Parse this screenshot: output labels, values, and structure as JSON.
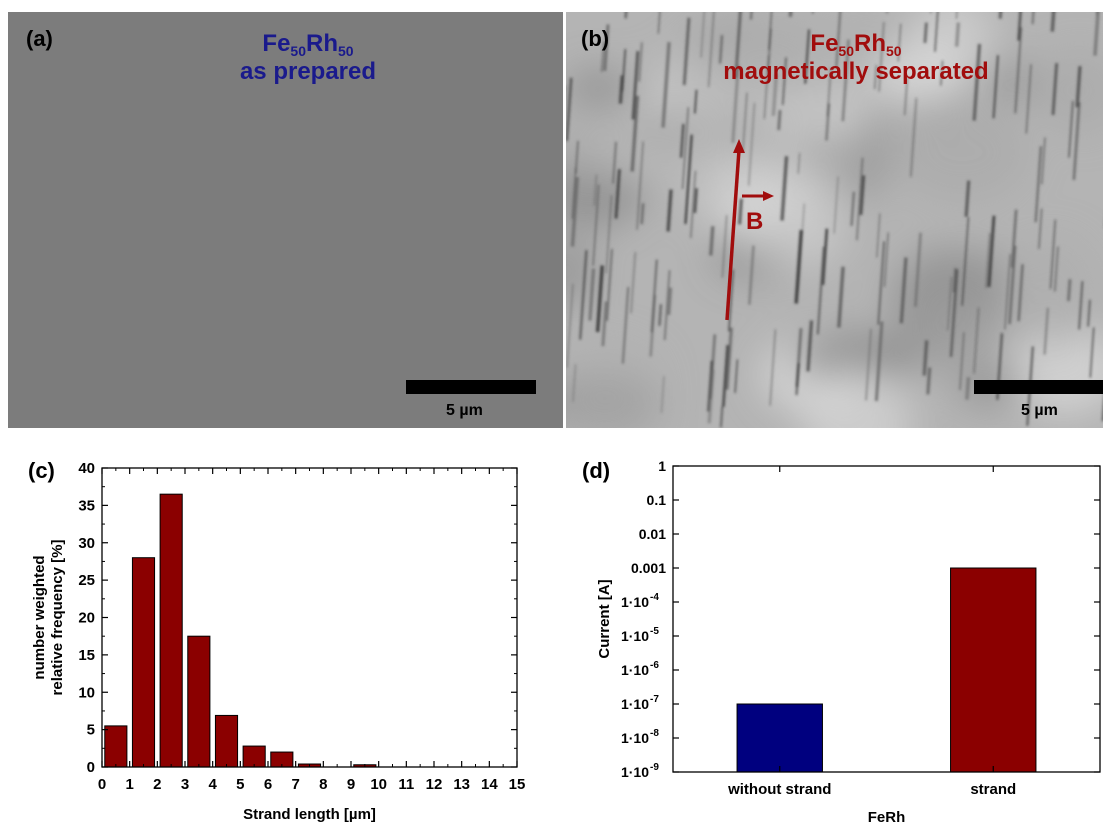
{
  "panels": {
    "a": {
      "label": "(a)",
      "title_main": "Fe",
      "title_sub1": "50",
      "title_mid": "Rh",
      "title_sub2": "50",
      "title_line2": "as prepared",
      "title_color": "#1a1a8c",
      "scale_label": "5 µm"
    },
    "b": {
      "label": "(b)",
      "title_main": "Fe",
      "title_sub1": "50",
      "title_mid": "Rh",
      "title_sub2": "50",
      "title_line2": "magnetically separated",
      "title_color": "#a10d0d",
      "field_label": "B",
      "scale_label": "5 µm"
    },
    "c": {
      "label": "(c)"
    },
    "d": {
      "label": "(d)"
    }
  },
  "chart_data": [
    {
      "id": "c",
      "type": "bar",
      "x": [
        0.5,
        1.5,
        2.5,
        3.5,
        4.5,
        5.5,
        6.5,
        7.5,
        8.5,
        9.5,
        10.5,
        11.5,
        12.5,
        13.5,
        14.5
      ],
      "values": [
        5.5,
        28,
        36.5,
        17.5,
        6.9,
        2.8,
        2.0,
        0.4,
        0.0,
        0.3,
        0,
        0,
        0,
        0,
        0
      ],
      "xlabel": "Strand length [µm]",
      "ylabel_line1": "number weighted",
      "ylabel_line2": "relative frequency [%]",
      "xlim": [
        0,
        15
      ],
      "ylim": [
        0,
        40
      ],
      "xticks": [
        "0",
        "1",
        "2",
        "3",
        "4",
        "5",
        "6",
        "7",
        "8",
        "9",
        "10",
        "11",
        "12",
        "13",
        "14",
        "15"
      ],
      "yticks": [
        "0",
        "5",
        "10",
        "15",
        "20",
        "25",
        "30",
        "35",
        "40"
      ],
      "bar_color": "#8b0000",
      "grid": false
    },
    {
      "id": "d",
      "type": "bar",
      "categories": [
        "without strand",
        "strand"
      ],
      "values": [
        1e-07,
        0.001
      ],
      "colors": [
        "#00007f",
        "#8b0000"
      ],
      "xlabel": "FeRh",
      "ylabel": "Current [A]",
      "yscale": "log",
      "ylim": [
        1e-09,
        1
      ],
      "ytick_labels": [
        "1",
        "0.1",
        "0.01",
        "0.001",
        "1·10",
        "1·10",
        "1·10",
        "1·10",
        "1·10",
        "1·10"
      ],
      "ytick_exponents": [
        "",
        "",
        "",
        "",
        "-4",
        "-5",
        "-6",
        "-7",
        "-8",
        "-9"
      ],
      "grid": false
    }
  ]
}
